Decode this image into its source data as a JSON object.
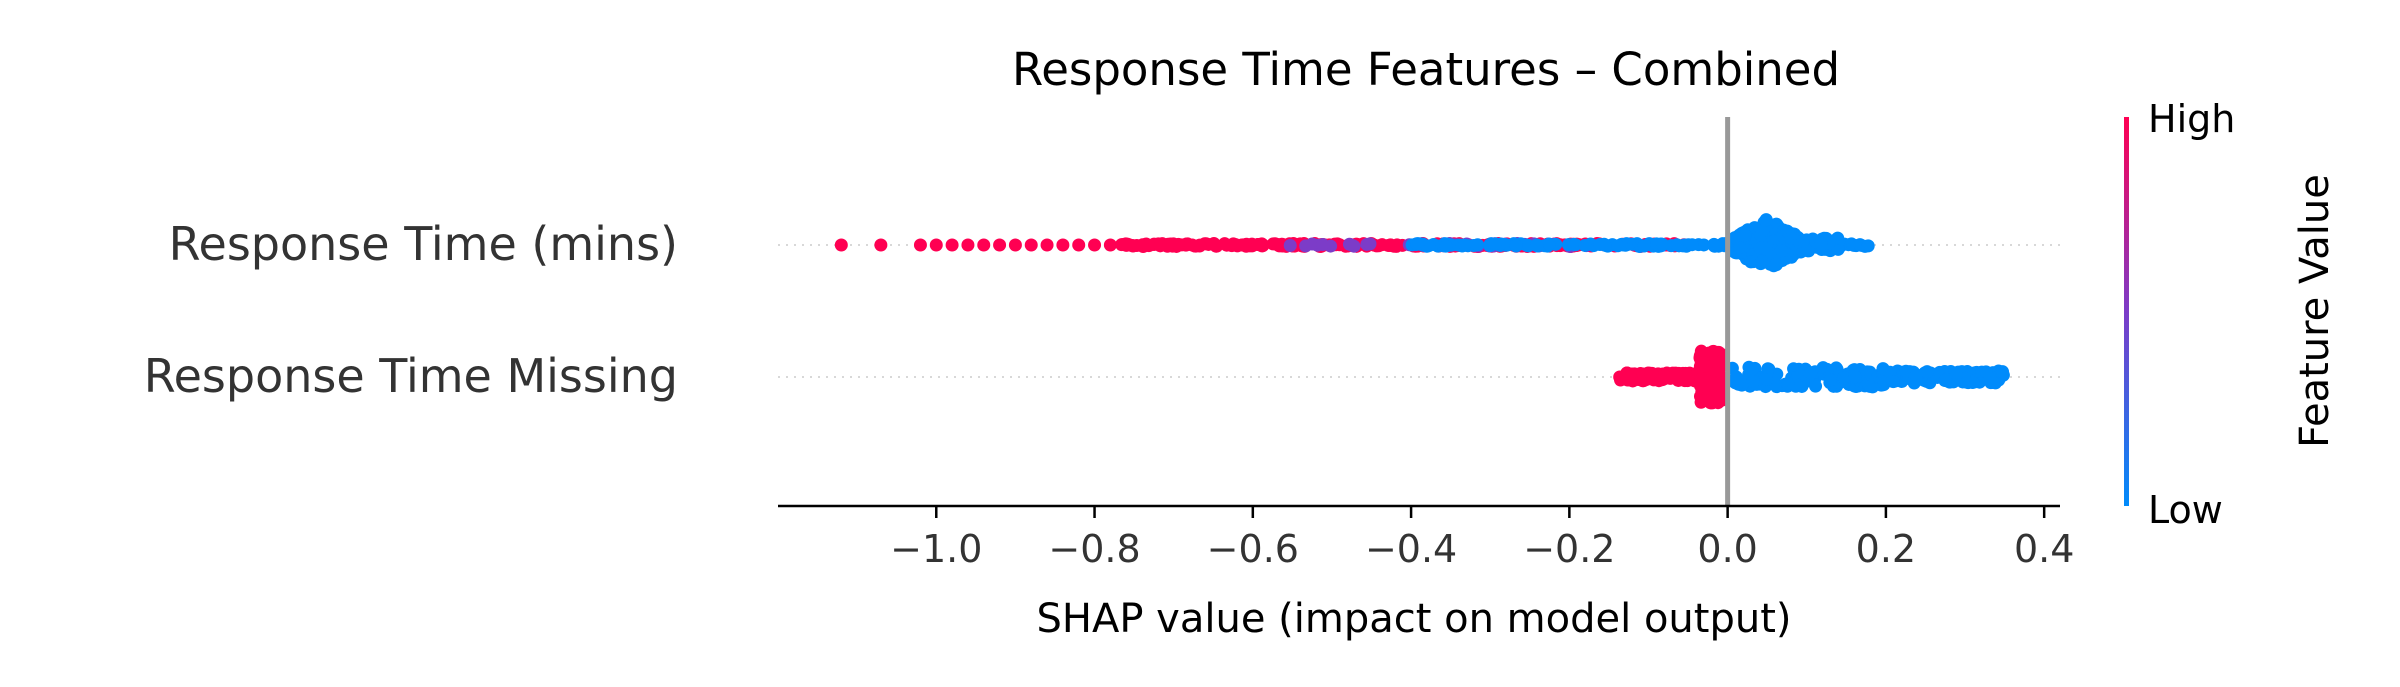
{
  "chart_data": {
    "type": "scatter",
    "subtype": "shap-beeswarm",
    "title": "Response Time Features – Combined",
    "xlabel": "SHAP value (impact on model output)",
    "xlim": [
      -1.2,
      0.42
    ],
    "xticks": [
      -1.0,
      -0.8,
      -0.6,
      -0.4,
      -0.2,
      0.0,
      0.2,
      0.4
    ],
    "xtick_labels": [
      "−1.0",
      "−0.8",
      "−0.6",
      "−0.4",
      "−0.2",
      "0.0",
      "0.2",
      "0.4"
    ],
    "zero_line": 0.0,
    "features": [
      {
        "label": "Response Time (mins)",
        "high_range": [
          -1.12,
          -0.05
        ],
        "low_range": [
          -0.4,
          0.18
        ],
        "dense_center": 0.05,
        "sparse_high_points": [
          -1.12,
          -1.07,
          -1.02,
          -1.0,
          -0.98,
          -0.96,
          -0.94,
          -0.92,
          -0.9,
          -0.88,
          -0.86,
          -0.84,
          -0.82,
          -0.8,
          -0.78
        ]
      },
      {
        "label": "Response Time Missing",
        "high_range": [
          -0.14,
          -0.01
        ],
        "low_range": [
          0.0,
          0.35
        ],
        "dense_center": -0.02
      }
    ],
    "colorbar": {
      "label": "Feature Value",
      "high_label": "High",
      "low_label": "Low",
      "high_color": "#ff0052",
      "low_color": "#008bfb",
      "mid_color": "#7c3cc8"
    },
    "grid": false
  }
}
